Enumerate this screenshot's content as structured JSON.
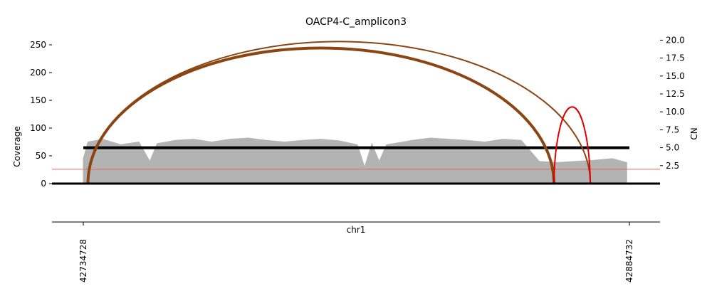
{
  "chart_data": {
    "type": "area",
    "title": "OACP4-C_amplicon3",
    "xlabel": "chr1",
    "ylabel_left": "Coverage",
    "ylabel_right": "CN",
    "xlim": [
      42734728,
      42884732
    ],
    "ylim_left": [
      0,
      260
    ],
    "ylim_right": [
      0,
      21
    ],
    "x_ticks": [
      42734728,
      42884732
    ],
    "x_tick_labels": [
      "42734728",
      "42884732"
    ],
    "y_ticks_left": [
      0,
      50,
      100,
      150,
      200,
      250
    ],
    "y_tick_labels_left": [
      "0",
      "50",
      "100",
      "150",
      "200",
      "250"
    ],
    "y_ticks_right": [
      2.5,
      5.0,
      7.5,
      10.0,
      12.5,
      15.0,
      17.5,
      20.0
    ],
    "y_tick_labels_right": [
      "2.5",
      "5.0",
      "7.5",
      "10.0",
      "12.5",
      "15.0",
      "17.5",
      "20.0"
    ],
    "coverage_profile": {
      "color": "#b3b3b3",
      "x": [
        42734728,
        42736000,
        42740000,
        42745000,
        42750000,
        42753000,
        42755000,
        42760000,
        42765000,
        42770000,
        42775000,
        42780000,
        42785000,
        42790000,
        42795000,
        42800000,
        42805000,
        42810000,
        42812000,
        42814000,
        42816000,
        42818000,
        42820000,
        42825000,
        42830000,
        42835000,
        42840000,
        42845000,
        42850000,
        42855000,
        42860000,
        42865000,
        42870000,
        42875000,
        42880000,
        42884000
      ],
      "y": [
        45,
        75,
        80,
        70,
        75,
        40,
        72,
        78,
        80,
        75,
        80,
        82,
        78,
        75,
        78,
        80,
        77,
        70,
        30,
        72,
        40,
        70,
        72,
        78,
        82,
        80,
        78,
        75,
        80,
        78,
        40,
        38,
        40,
        42,
        45,
        38
      ]
    },
    "segments": [
      {
        "x0": 42734728,
        "x1": 42884732,
        "cn": 5.0,
        "color": "#000000"
      }
    ],
    "cn_threshold": {
      "cn": 2.0,
      "color": "#e06666"
    },
    "breakpoint_arcs": [
      {
        "x0": 42736000,
        "x1": 42864000,
        "height_cn": 18.9,
        "color": "#8b4513",
        "weight": "heavy"
      },
      {
        "x0": 42736000,
        "x1": 42874000,
        "height_cn": 19.8,
        "color": "#8b4513",
        "weight": "light"
      },
      {
        "x0": 42864000,
        "x1": 42874000,
        "height_cn": 11.4,
        "color": "#e00000",
        "weight": "light"
      }
    ],
    "legend": "none",
    "grid": false
  }
}
